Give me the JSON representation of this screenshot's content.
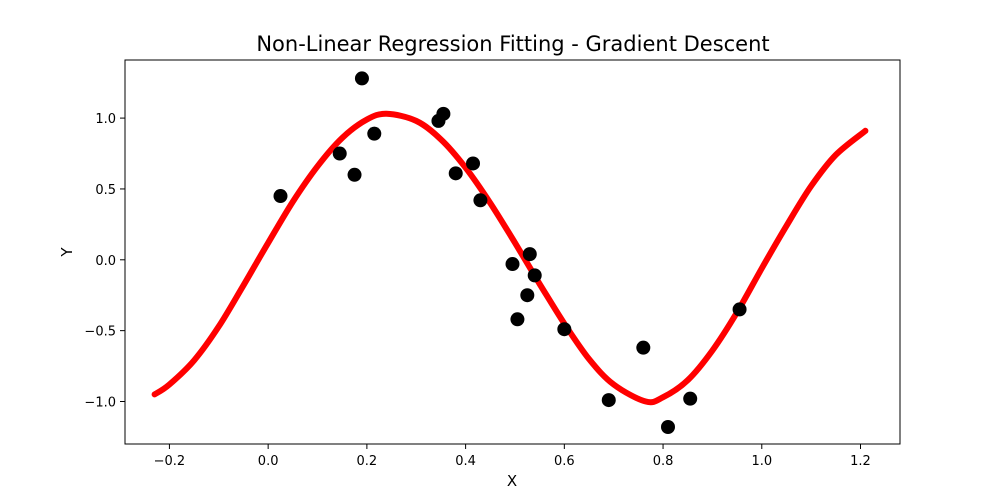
{
  "chart_data": {
    "type": "scatter",
    "title": "Non-Linear Regression Fitting - Gradient Descent",
    "xlabel": "X",
    "ylabel": "Y",
    "xlim": [
      -0.29,
      1.28
    ],
    "ylim": [
      -1.3,
      1.41
    ],
    "xticks": [
      -0.2,
      0.0,
      0.2,
      0.4,
      0.6,
      0.8,
      1.0,
      1.2
    ],
    "yticks": [
      -1.0,
      -0.5,
      0.0,
      0.5,
      1.0
    ],
    "xtick_labels": [
      "−0.2",
      "0.0",
      "0.2",
      "0.4",
      "0.6",
      "0.8",
      "1.0",
      "1.2"
    ],
    "ytick_labels": [
      "−1.0",
      "−0.5",
      "0.0",
      "0.5",
      "1.0"
    ],
    "grid": false,
    "series": [
      {
        "kind": "scatter",
        "color": "#000000",
        "points": [
          [
            0.025,
            0.45
          ],
          [
            0.145,
            0.75
          ],
          [
            0.175,
            0.6
          ],
          [
            0.19,
            1.28
          ],
          [
            0.215,
            0.89
          ],
          [
            0.345,
            0.98
          ],
          [
            0.355,
            1.03
          ],
          [
            0.38,
            0.61
          ],
          [
            0.415,
            0.68
          ],
          [
            0.43,
            0.42
          ],
          [
            0.495,
            -0.03
          ],
          [
            0.505,
            -0.42
          ],
          [
            0.525,
            -0.25
          ],
          [
            0.53,
            0.04
          ],
          [
            0.54,
            -0.11
          ],
          [
            0.6,
            -0.49
          ],
          [
            0.69,
            -0.99
          ],
          [
            0.76,
            -0.62
          ],
          [
            0.81,
            -1.18
          ],
          [
            0.855,
            -0.98
          ],
          [
            0.955,
            -0.35
          ]
        ]
      },
      {
        "kind": "line",
        "color": "#ff0000",
        "x": [
          -0.23,
          -0.2,
          -0.15,
          -0.1,
          -0.05,
          0.0,
          0.05,
          0.1,
          0.15,
          0.2,
          0.24,
          0.3,
          0.35,
          0.4,
          0.45,
          0.5,
          0.55,
          0.6,
          0.65,
          0.7,
          0.765,
          0.8,
          0.85,
          0.9,
          0.95,
          1.0,
          1.05,
          1.1,
          1.15,
          1.21
        ],
        "y": [
          -0.95,
          -0.88,
          -0.71,
          -0.47,
          -0.18,
          0.12,
          0.41,
          0.66,
          0.86,
          0.99,
          1.03,
          0.98,
          0.85,
          0.65,
          0.4,
          0.12,
          -0.17,
          -0.45,
          -0.7,
          -0.88,
          -1.0,
          -0.97,
          -0.85,
          -0.64,
          -0.37,
          -0.06,
          0.24,
          0.52,
          0.74,
          0.91
        ]
      }
    ]
  }
}
